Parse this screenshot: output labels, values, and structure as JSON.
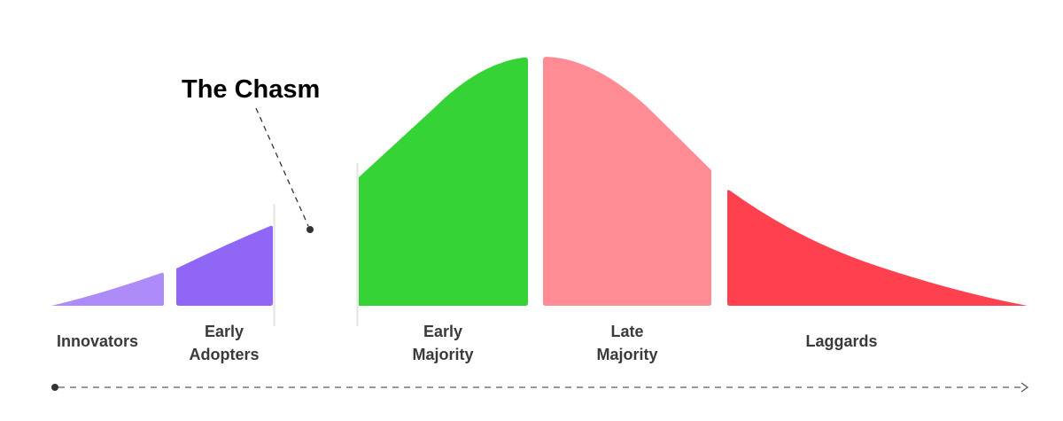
{
  "title": "The Chasm",
  "segments": [
    {
      "id": "innovators",
      "lines": [
        "Innovators"
      ],
      "color": "#ad8cf9"
    },
    {
      "id": "early-adopters",
      "lines": [
        "Early",
        "Adopters"
      ],
      "color": "#8f66f6"
    },
    {
      "id": "early-majority",
      "lines": [
        "Early",
        "Majority"
      ],
      "color": "#35d335"
    },
    {
      "id": "late-majority",
      "lines": [
        "Late",
        "Majority"
      ],
      "color": "#ff8c94"
    },
    {
      "id": "laggards",
      "lines": [
        "Laggards"
      ],
      "color": "#ff404f"
    }
  ],
  "colors": {
    "text": "#3a3a3a",
    "divider": "#e0e6e0",
    "axis": "#555555"
  }
}
